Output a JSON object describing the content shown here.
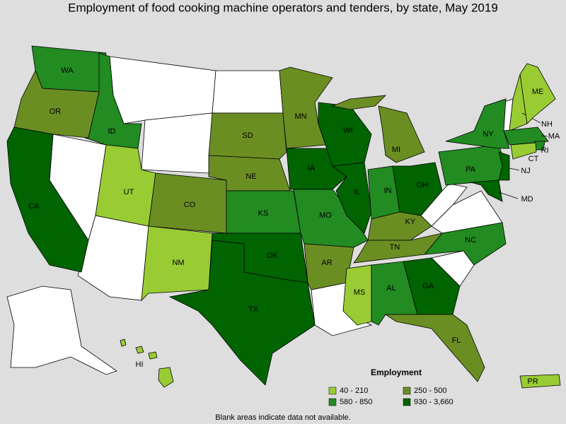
{
  "title": "Employment of food cooking machine operators and tenders, by state, May 2019",
  "legend": {
    "title": "Employment",
    "items": [
      {
        "label": "40 - 210",
        "color": "#99cc33"
      },
      {
        "label": "250 - 500",
        "color": "#6b8e23"
      },
      {
        "label": "580 - 850",
        "color": "#228b22"
      },
      {
        "label": "930 - 3,660",
        "color": "#006400"
      }
    ]
  },
  "states": [
    {
      "label": "WA",
      "color": "#228b22"
    },
    {
      "label": "OR",
      "color": "#6b8e23"
    },
    {
      "label": "CA",
      "color": "#006400"
    },
    {
      "label": "ID",
      "color": "#228b22"
    },
    {
      "label": "UT",
      "color": "#99cc33"
    },
    {
      "label": "CO",
      "color": "#6b8e23"
    },
    {
      "label": "NM",
      "color": "#99cc33"
    },
    {
      "label": "SD",
      "color": "#6b8e23"
    },
    {
      "label": "NE",
      "color": "#6b8e23"
    },
    {
      "label": "KS",
      "color": "#228b22"
    },
    {
      "label": "OK",
      "color": "#006400"
    },
    {
      "label": "TX",
      "color": "#006400"
    },
    {
      "label": "MN",
      "color": "#6b8e23"
    },
    {
      "label": "IA",
      "color": "#006400"
    },
    {
      "label": "MO",
      "color": "#228b22"
    },
    {
      "label": "AR",
      "color": "#6b8e23"
    },
    {
      "label": "WI",
      "color": "#006400"
    },
    {
      "label": "IL",
      "color": "#006400"
    },
    {
      "label": "MI",
      "color": "#6b8e23"
    },
    {
      "label": "IN",
      "color": "#228b22"
    },
    {
      "label": "OH",
      "color": "#006400"
    },
    {
      "label": "KY",
      "color": "#6b8e23"
    },
    {
      "label": "TN",
      "color": "#6b8e23"
    },
    {
      "label": "MS",
      "color": "#99cc33"
    },
    {
      "label": "AL",
      "color": "#228b22"
    },
    {
      "label": "GA",
      "color": "#006400"
    },
    {
      "label": "FL",
      "color": "#6b8e23"
    },
    {
      "label": "NC",
      "color": "#228b22"
    },
    {
      "label": "PA",
      "color": "#228b22"
    },
    {
      "label": "NY",
      "color": "#228b22"
    },
    {
      "label": "NH",
      "color": "#99cc33"
    },
    {
      "label": "ME",
      "color": "#99cc33"
    },
    {
      "label": "MA",
      "color": "#228b22"
    },
    {
      "label": "RI",
      "color": "#228b22"
    },
    {
      "label": "CT",
      "color": "#99cc33"
    },
    {
      "label": "NJ",
      "color": "#006400"
    },
    {
      "label": "MD",
      "color": "#006400"
    },
    {
      "label": "HI",
      "color": "#99cc33"
    },
    {
      "label": "PR",
      "color": "#99cc33"
    }
  ],
  "footnote": "Blank areas indicate data not available."
}
